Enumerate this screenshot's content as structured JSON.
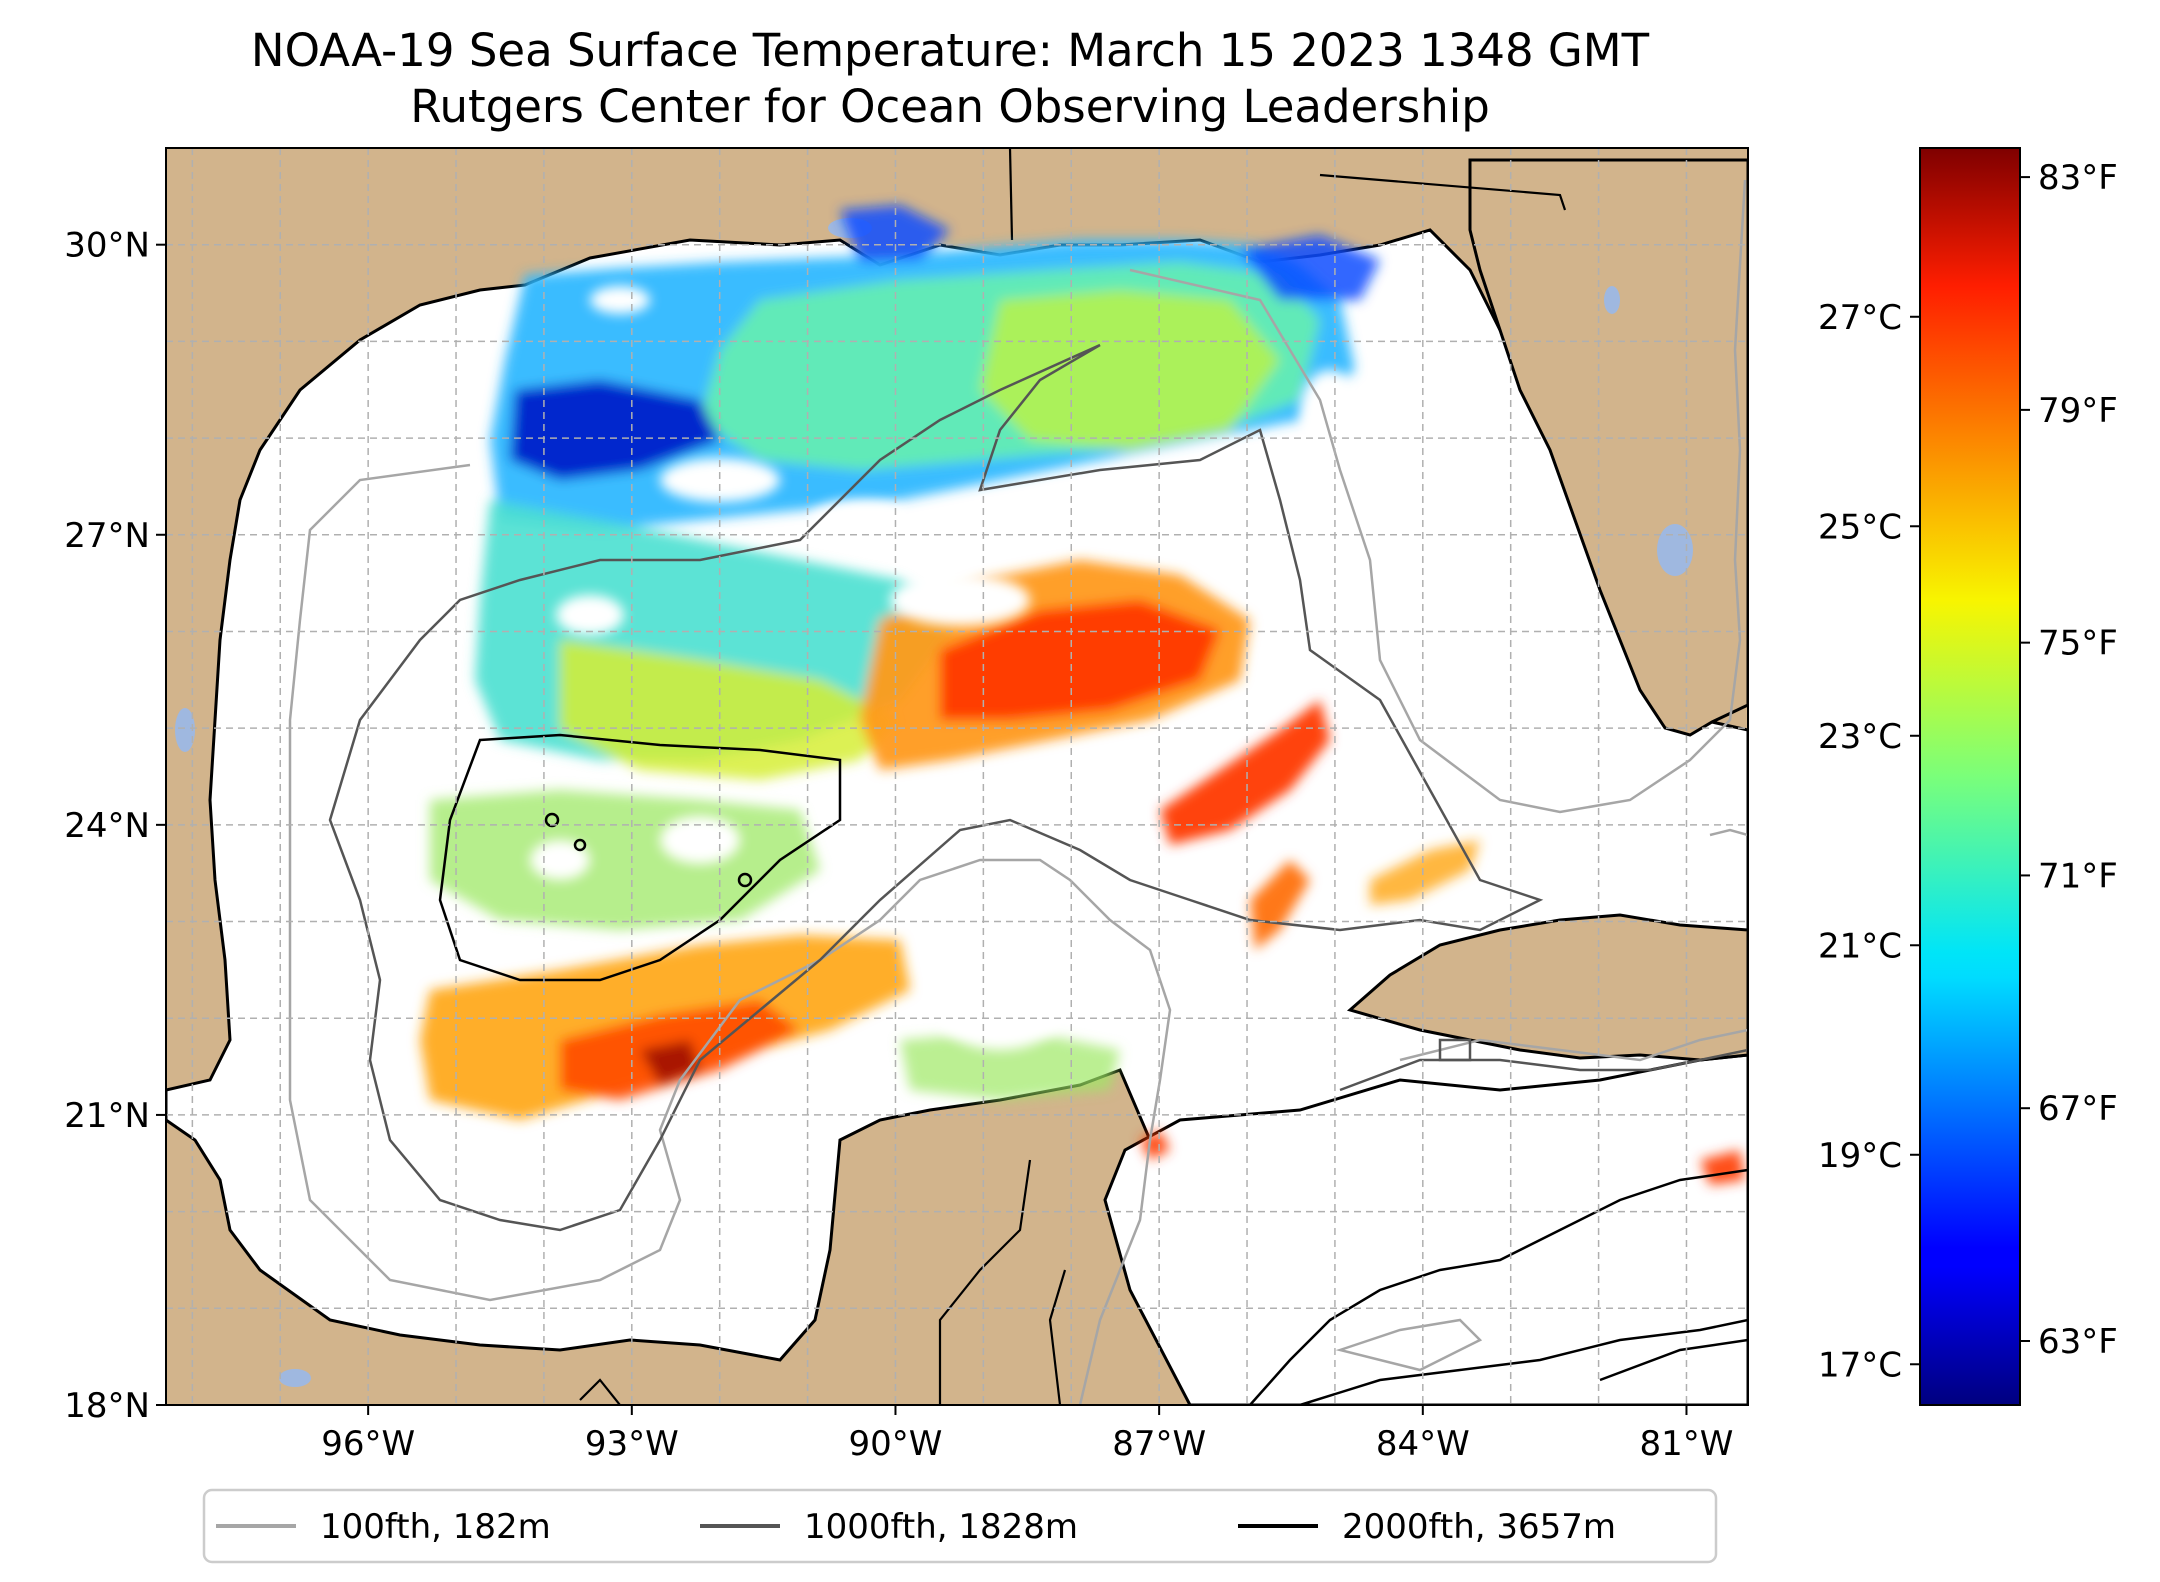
{
  "title": {
    "line1": "NOAA-19 Sea Surface Temperature: March 15 2023 1348 GMT",
    "line2": "Rutgers Center for Ocean Observing Leadership"
  },
  "map": {
    "lon_range": [
      -98.3,
      -80.3
    ],
    "lat_range": [
      18.0,
      31.0
    ],
    "lon_ticks": [
      {
        "value": -96,
        "label": "96°W"
      },
      {
        "value": -93,
        "label": "93°W"
      },
      {
        "value": -90,
        "label": "90°W"
      },
      {
        "value": -87,
        "label": "87°W"
      },
      {
        "value": -84,
        "label": "84°W"
      },
      {
        "value": -81,
        "label": "81°W"
      }
    ],
    "lat_ticks": [
      {
        "value": 18,
        "label": "18°N"
      },
      {
        "value": 21,
        "label": "21°N"
      },
      {
        "value": 24,
        "label": "24°N"
      },
      {
        "value": 27,
        "label": "27°N"
      },
      {
        "value": 30,
        "label": "30°N"
      }
    ],
    "grid": true,
    "colors": {
      "land": "#d2b48c",
      "water": "#ffffff",
      "lakes": "#9fb8e0",
      "coast": "#000000"
    }
  },
  "colorbar": {
    "colormap": "jet",
    "celsius_ticks": [
      {
        "value": 17,
        "label": "17°C"
      },
      {
        "value": 19,
        "label": "19°C"
      },
      {
        "value": 21,
        "label": "21°C"
      },
      {
        "value": 23,
        "label": "23°C"
      },
      {
        "value": 25,
        "label": "25°C"
      },
      {
        "value": 27,
        "label": "27°C"
      }
    ],
    "fahrenheit_ticks": [
      {
        "value": 63,
        "label": "63°F"
      },
      {
        "value": 67,
        "label": "67°F"
      },
      {
        "value": 71,
        "label": "71°F"
      },
      {
        "value": 75,
        "label": "75°F"
      },
      {
        "value": 79,
        "label": "79°F"
      },
      {
        "value": 83,
        "label": "83°F"
      }
    ],
    "range_f": [
      61.9,
      83.5
    ]
  },
  "legend": {
    "placement": "bottom-center",
    "items": [
      {
        "label": "100fth, 182m",
        "color": "#a6a6a6"
      },
      {
        "label": "1000fth, 1828m",
        "color": "#555555"
      },
      {
        "label": "2000fth, 3657m",
        "color": "#000000"
      }
    ]
  }
}
